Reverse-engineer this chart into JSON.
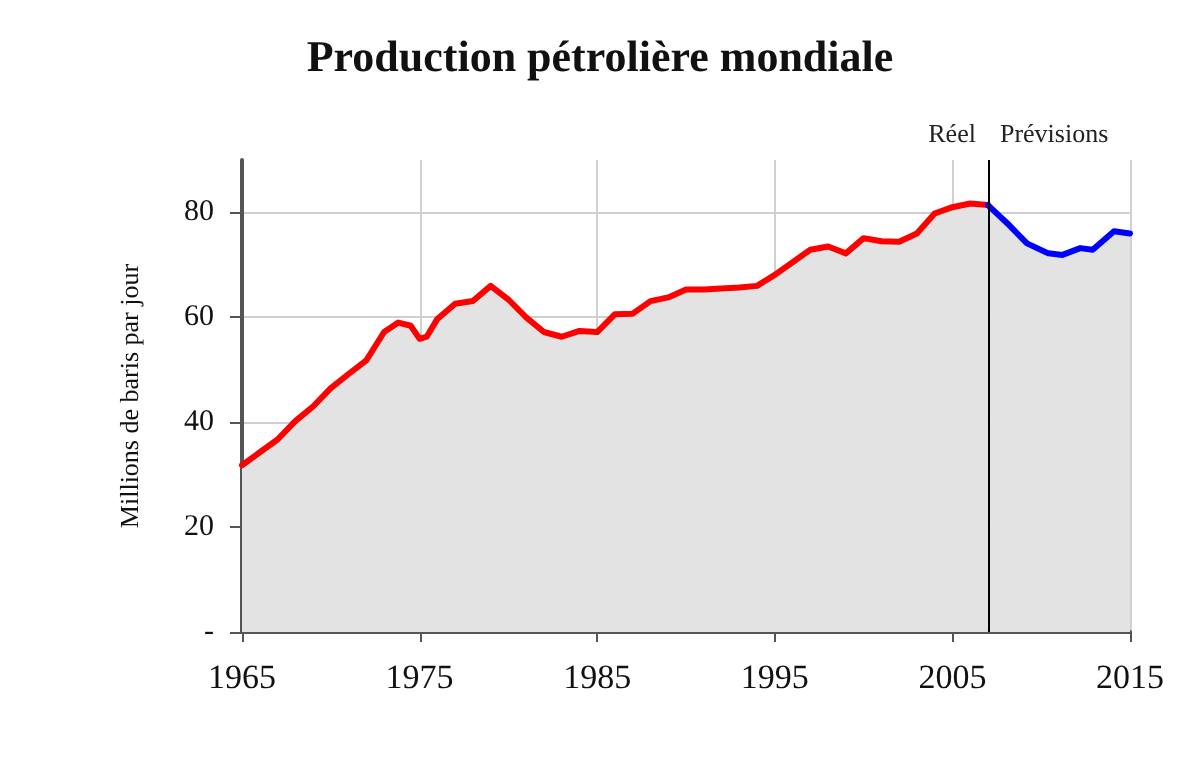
{
  "chart_data": {
    "type": "area",
    "title": "Production pétrolière mondiale",
    "ylabel": "Millions de baris par jour",
    "xlim": [
      1965,
      2015
    ],
    "xticks": [
      1965,
      1975,
      1985,
      1995,
      2005,
      2015
    ],
    "ylim": [
      0,
      90
    ],
    "yticks": [
      {
        "value": 0,
        "label": "-"
      },
      20,
      40,
      60,
      80
    ],
    "grid": true,
    "marker": "none",
    "line_style": "solid",
    "series": [
      {
        "color": "#ff0000",
        "x": [
          1965,
          1967,
          1968,
          1969,
          1970,
          1971,
          1972,
          1973,
          1973.8,
          1974.5,
          1975,
          1975.4,
          1976,
          1977,
          1978,
          1979,
          1980,
          1981,
          1982,
          1983,
          1984,
          1985,
          1986,
          1987,
          1988,
          1989,
          1990,
          1991,
          1993,
          1994,
          1995,
          1997,
          1998,
          1999,
          2000,
          2001,
          2002,
          2003,
          2004,
          2005,
          2006,
          2007
        ],
        "values": [
          31.8,
          36.7,
          40.2,
          43,
          46.5,
          49.2,
          51.8,
          57.2,
          59,
          58.4,
          55.9,
          56.3,
          59.7,
          62.6,
          63.1,
          66,
          63.4,
          60,
          57.2,
          56.3,
          57.4,
          57.2,
          60.6,
          60.7,
          63.1,
          63.8,
          65.3,
          65.3,
          65.7,
          66,
          68.1,
          72.9,
          73.5,
          72.2,
          75.1,
          74.5,
          74.4,
          76,
          79.8,
          81,
          81.7,
          81.4
        ]
      },
      {
        "color": "#0000ff",
        "x": [
          2007,
          2008.1,
          2009.2,
          2010.4,
          2011.2,
          2012.2,
          2012.9,
          2014.1,
          2015
        ],
        "values": [
          81.4,
          77.9,
          74.1,
          72.2,
          71.9,
          73.2,
          72.9,
          76.4,
          76
        ]
      }
    ],
    "ref_lines": [
      {
        "axis": "x",
        "value": 2007,
        "label": "Réel",
        "color": "#000000"
      }
    ],
    "annotations": [
      {
        "text": "Prévisions",
        "x": 2007,
        "y": 90
      }
    ]
  }
}
